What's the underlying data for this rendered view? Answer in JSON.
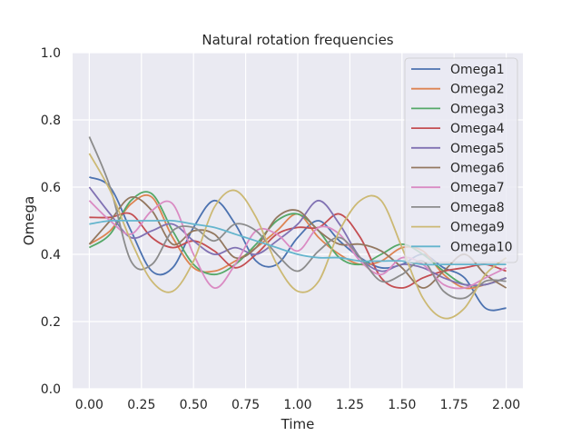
{
  "chart_data": {
    "type": "line",
    "title": "Natural rotation frequencies",
    "xlabel": "Time",
    "ylabel": "Omega",
    "xlim": [
      -0.08,
      2.08
    ],
    "ylim": [
      0.0,
      1.0
    ],
    "xticks": [
      0.0,
      0.25,
      0.5,
      0.75,
      1.0,
      1.25,
      1.5,
      1.75,
      2.0
    ],
    "xtick_labels": [
      "0.00",
      "0.25",
      "0.50",
      "0.75",
      "1.00",
      "1.25",
      "1.50",
      "1.75",
      "2.00"
    ],
    "yticks": [
      0.0,
      0.2,
      0.4,
      0.6,
      0.8,
      1.0
    ],
    "ytick_labels": [
      "0.0",
      "0.2",
      "0.4",
      "0.6",
      "0.8",
      "1.0"
    ],
    "grid": true,
    "legend_position": "top-right",
    "background": "#eaeaf2",
    "x": [
      0.0,
      0.1,
      0.2,
      0.3,
      0.4,
      0.5,
      0.6,
      0.7,
      0.8,
      0.9,
      1.0,
      1.1,
      1.2,
      1.3,
      1.4,
      1.5,
      1.6,
      1.7,
      1.8,
      1.9,
      2.0
    ],
    "series": [
      {
        "name": "Omega1",
        "color": "#4c72b0",
        "values": [
          0.63,
          0.6,
          0.47,
          0.35,
          0.36,
          0.48,
          0.56,
          0.49,
          0.38,
          0.37,
          0.45,
          0.5,
          0.44,
          0.39,
          0.36,
          0.37,
          0.4,
          0.36,
          0.33,
          0.24,
          0.24
        ]
      },
      {
        "name": "Omega2",
        "color": "#dd8452",
        "values": [
          0.43,
          0.47,
          0.55,
          0.57,
          0.45,
          0.36,
          0.35,
          0.38,
          0.42,
          0.47,
          0.52,
          0.45,
          0.4,
          0.37,
          0.38,
          0.42,
          0.41,
          0.34,
          0.3,
          0.31,
          0.33
        ]
      },
      {
        "name": "Omega3",
        "color": "#55a868",
        "values": [
          0.42,
          0.46,
          0.56,
          0.58,
          0.47,
          0.37,
          0.34,
          0.37,
          0.43,
          0.5,
          0.52,
          0.47,
          0.39,
          0.37,
          0.4,
          0.43,
          0.4,
          0.35,
          0.31,
          0.31,
          0.33
        ]
      },
      {
        "name": "Omega4",
        "color": "#c44e52",
        "values": [
          0.51,
          0.51,
          0.52,
          0.45,
          0.42,
          0.44,
          0.41,
          0.36,
          0.4,
          0.46,
          0.48,
          0.48,
          0.52,
          0.45,
          0.33,
          0.3,
          0.33,
          0.35,
          0.36,
          0.37,
          0.35
        ]
      },
      {
        "name": "Omega5",
        "color": "#8172b3",
        "values": [
          0.6,
          0.52,
          0.45,
          0.47,
          0.49,
          0.44,
          0.4,
          0.42,
          0.4,
          0.44,
          0.49,
          0.56,
          0.49,
          0.39,
          0.35,
          0.37,
          0.36,
          0.33,
          0.31,
          0.31,
          0.33
        ]
      },
      {
        "name": "Omega6",
        "color": "#937860",
        "values": [
          0.43,
          0.5,
          0.57,
          0.53,
          0.43,
          0.47,
          0.46,
          0.39,
          0.42,
          0.51,
          0.53,
          0.47,
          0.43,
          0.43,
          0.41,
          0.36,
          0.3,
          0.35,
          0.4,
          0.34,
          0.3
        ]
      },
      {
        "name": "Omega7",
        "color": "#da8bc3",
        "values": [
          0.56,
          0.5,
          0.46,
          0.53,
          0.55,
          0.4,
          0.3,
          0.37,
          0.47,
          0.46,
          0.41,
          0.48,
          0.46,
          0.38,
          0.34,
          0.39,
          0.37,
          0.31,
          0.3,
          0.33,
          0.36
        ]
      },
      {
        "name": "Omega8",
        "color": "#8c8c8c",
        "values": [
          0.75,
          0.6,
          0.38,
          0.37,
          0.47,
          0.48,
          0.44,
          0.49,
          0.47,
          0.4,
          0.35,
          0.41,
          0.45,
          0.39,
          0.32,
          0.34,
          0.38,
          0.29,
          0.27,
          0.32,
          0.32
        ]
      },
      {
        "name": "Omega9",
        "color": "#ccb974",
        "values": [
          0.7,
          0.59,
          0.44,
          0.32,
          0.29,
          0.38,
          0.54,
          0.59,
          0.51,
          0.37,
          0.29,
          0.32,
          0.47,
          0.56,
          0.56,
          0.42,
          0.27,
          0.21,
          0.24,
          0.34,
          0.39
        ]
      },
      {
        "name": "Omega10",
        "color": "#64b5cd",
        "values": [
          0.49,
          0.5,
          0.5,
          0.5,
          0.5,
          0.49,
          0.48,
          0.46,
          0.44,
          0.42,
          0.4,
          0.39,
          0.39,
          0.38,
          0.38,
          0.38,
          0.37,
          0.37,
          0.37,
          0.37,
          0.37
        ]
      }
    ]
  }
}
